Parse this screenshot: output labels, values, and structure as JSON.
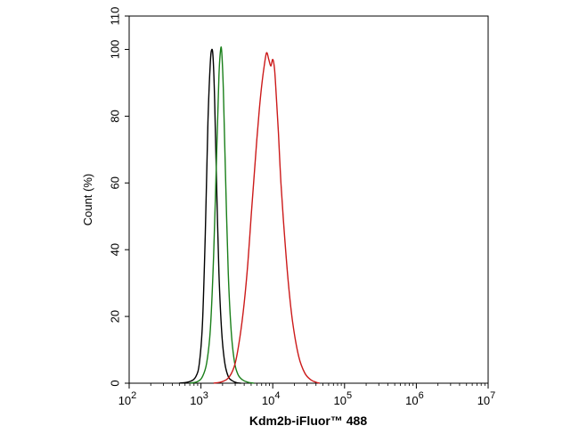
{
  "chart_data": {
    "type": "line",
    "title": "",
    "xlabel": "Kdm2b-iFluor™ 488",
    "ylabel": "Count  (%)",
    "x_scale": "log",
    "xlim": [
      100,
      10000000
    ],
    "ylim": [
      0,
      110
    ],
    "x_tick_base": "10",
    "x_tick_exponents": [
      "2",
      "3",
      "4",
      "5",
      "6",
      "7"
    ],
    "y_ticks": [
      "0",
      "20",
      "40",
      "60",
      "80",
      "100",
      "110"
    ],
    "y_tick_values": [
      0,
      20,
      40,
      60,
      80,
      100,
      110
    ],
    "grid": false,
    "legend": "none",
    "series": [
      {
        "color": "#000000",
        "x": [
          500,
          700,
          850,
          950,
          1050,
          1150,
          1250,
          1350,
          1420,
          1480,
          1550,
          1650,
          1780,
          1950,
          2150,
          2400,
          2700,
          3100,
          3600
        ],
        "y": [
          0,
          0.5,
          2,
          6,
          18,
          45,
          78,
          96,
          100,
          97,
          85,
          60,
          33,
          15,
          6,
          2,
          0.8,
          0.2,
          0
        ]
      },
      {
        "color": "#1a7f1a",
        "x": [
          700,
          900,
          1050,
          1200,
          1350,
          1500,
          1650,
          1780,
          1880,
          1950,
          2050,
          2200,
          2400,
          2650,
          2950,
          3300,
          3800,
          4500,
          5500
        ],
        "y": [
          0,
          0.5,
          2,
          6,
          16,
          38,
          68,
          92,
          100,
          99,
          88,
          62,
          33,
          15,
          6,
          2.5,
          1,
          0.3,
          0
        ]
      },
      {
        "color": "#cc1a1a",
        "x": [
          1500,
          2000,
          2500,
          3000,
          3500,
          4000,
          4500,
          5000,
          5500,
          6000,
          6500,
          7000,
          7600,
          8200,
          8800,
          9400,
          10000,
          10600,
          11200,
          12000,
          13000,
          14500,
          16500,
          19000,
          23000,
          28000,
          34000,
          40000,
          45000
        ],
        "y": [
          0,
          0.5,
          2,
          6,
          14,
          24,
          36,
          50,
          62,
          73,
          82,
          89,
          95,
          99,
          97,
          95,
          97,
          94,
          86,
          75,
          60,
          45,
          30,
          18,
          8,
          3,
          1,
          0.3,
          0
        ]
      }
    ]
  }
}
